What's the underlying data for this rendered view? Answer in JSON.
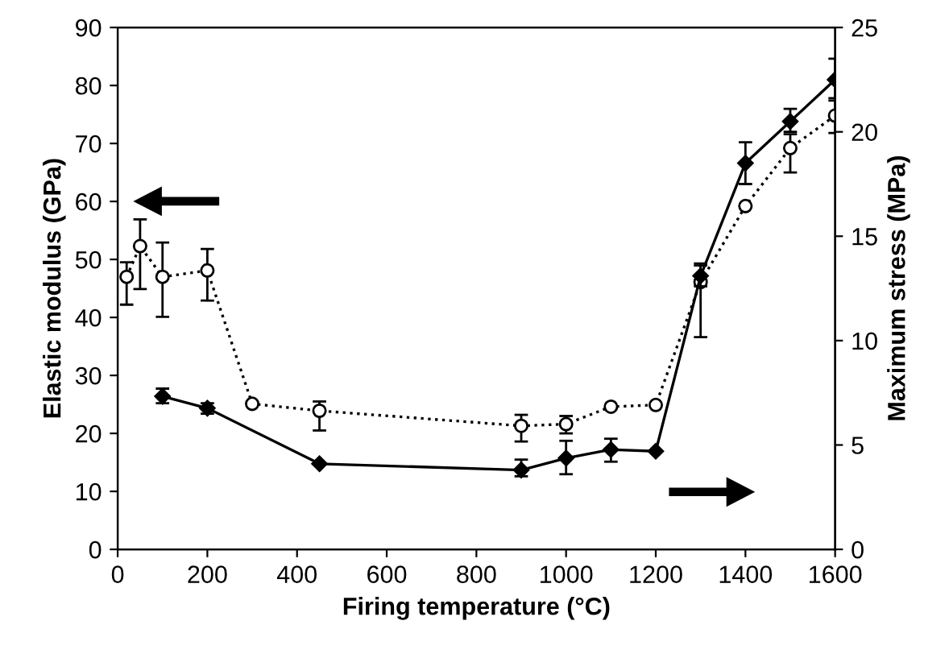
{
  "chart_data": {
    "type": "line",
    "xlabel": "Firing temperature (°C)",
    "ylabel": "Elastic modulus (GPa)",
    "y2label": "Maximum stress (MPa)",
    "xlim": [
      0,
      1600
    ],
    "xticks": [
      0,
      200,
      400,
      600,
      800,
      1000,
      1200,
      1400,
      1600
    ],
    "ylim": [
      0,
      90
    ],
    "yticks": [
      0,
      10,
      20,
      30,
      40,
      50,
      60,
      70,
      80,
      90
    ],
    "y2lim": [
      0,
      25
    ],
    "y2ticks": [
      0,
      5,
      10,
      15,
      20,
      25
    ],
    "grid": false,
    "series": [
      {
        "color": "#000000",
        "marker": "circle",
        "line_style": "dotted",
        "axis": "y",
        "x": [
          20,
          50,
          100,
          200,
          300,
          450,
          900,
          1000,
          1100,
          1200,
          1300,
          1400,
          1500,
          1600
        ],
        "values": [
          47,
          52.3,
          47,
          48.1,
          25.1,
          23.9,
          21.3,
          21.6,
          24.6,
          24.9,
          46.1,
          59.2,
          69.2,
          74.8
        ],
        "errors": [
          [
            42.2,
            49.5
          ],
          [
            44.9,
            56.9
          ],
          [
            40.1,
            52.9
          ],
          [
            42.9,
            51.8
          ],
          null,
          [
            20.5,
            25.5
          ],
          [
            18.6,
            23.2
          ],
          [
            20,
            23
          ],
          null,
          null,
          [
            36.6,
            49.3
          ],
          null,
          [
            65,
            71.6
          ],
          [
            71.8,
            77.8
          ]
        ]
      },
      {
        "color": "#000000",
        "marker": "diamond",
        "line_style": "solid",
        "axis": "y2",
        "x": [
          100,
          200,
          450,
          900,
          1000,
          1100,
          1200,
          1300,
          1400,
          1500,
          1600
        ],
        "values": [
          7.33,
          6.76,
          4.1,
          3.8,
          4.37,
          4.78,
          4.7,
          13.1,
          18.5,
          20.5,
          22.5
        ],
        "errors": [
          [
            7.0,
            7.7
          ],
          [
            6.5,
            7.0
          ],
          null,
          [
            3.5,
            4.3
          ],
          [
            3.6,
            5.2
          ],
          [
            4.2,
            5.3
          ],
          null,
          [
            12.6,
            13.6
          ],
          [
            17.5,
            19.5
          ],
          [
            20.0,
            21.1
          ],
          [
            21.5,
            23.5
          ]
        ]
      }
    ]
  }
}
